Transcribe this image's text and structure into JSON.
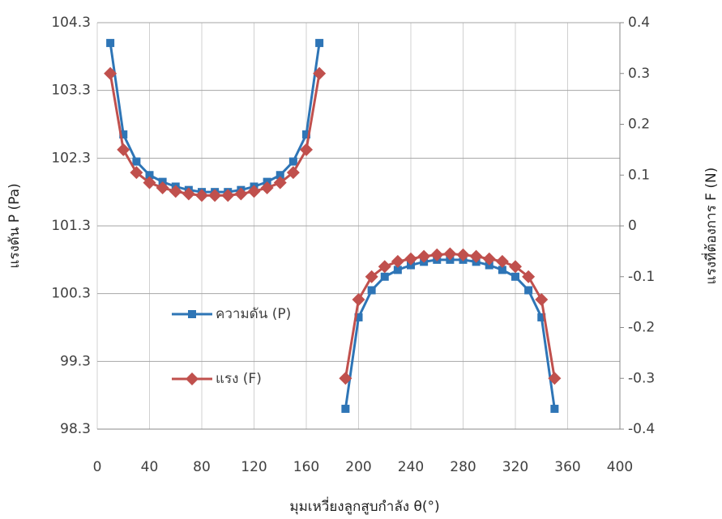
{
  "chart_data": {
    "type": "line",
    "x_label": "มุมเหวี่ยงลูกสูบกำลัง θ(°)",
    "y_label": "แรงดัน P (Pa)",
    "y2_label": "แรงที่ต้องการ F (N)",
    "x": [
      10,
      20,
      30,
      40,
      50,
      60,
      70,
      80,
      90,
      100,
      110,
      120,
      130,
      140,
      150,
      160,
      170,
      180,
      190,
      200,
      210,
      220,
      230,
      240,
      250,
      260,
      270,
      280,
      290,
      300,
      310,
      320,
      330,
      340,
      350
    ],
    "series": [
      {
        "name": "ความดัน (P)",
        "color": "#2e75b6",
        "marker": "square",
        "values": [
          104.0,
          102.65,
          102.25,
          102.05,
          101.95,
          101.88,
          101.83,
          101.8,
          101.8,
          101.8,
          101.83,
          101.88,
          101.95,
          102.05,
          102.25,
          102.65,
          104.0,
          null,
          98.6,
          99.95,
          100.35,
          100.55,
          100.65,
          100.72,
          100.77,
          100.8,
          100.8,
          100.8,
          100.77,
          100.72,
          100.65,
          100.55,
          100.35,
          99.95,
          98.6
        ]
      },
      {
        "name": "แรง (F)",
        "color": "#c0504d",
        "marker": "diamond",
        "axis": "y2",
        "values": [
          0.3,
          0.15,
          0.105,
          0.085,
          0.075,
          0.068,
          0.063,
          0.06,
          0.06,
          0.06,
          0.063,
          0.068,
          0.075,
          0.085,
          0.105,
          0.15,
          0.3,
          null,
          -0.3,
          -0.145,
          -0.1,
          -0.08,
          -0.07,
          -0.065,
          -0.06,
          -0.057,
          -0.055,
          -0.057,
          -0.06,
          -0.065,
          -0.07,
          -0.08,
          -0.1,
          -0.145,
          -0.3
        ]
      }
    ],
    "xlim": [
      0,
      400
    ],
    "xticks": [
      0,
      40,
      80,
      120,
      160,
      200,
      240,
      280,
      320,
      360,
      400
    ],
    "ylim": [
      98.3,
      104.3
    ],
    "yticks": [
      98.3,
      99.3,
      100.3,
      101.3,
      102.3,
      103.3,
      104.3
    ],
    "y2lim": [
      -0.4,
      0.4
    ],
    "y2ticks": [
      -0.4,
      -0.3,
      -0.2,
      -0.1,
      0,
      0.1,
      0.2,
      0.3,
      0.4
    ],
    "grid": true
  }
}
